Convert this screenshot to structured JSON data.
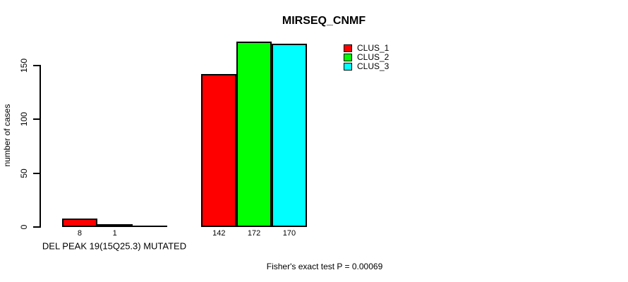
{
  "title": "MIRSEQ_CNMF",
  "y_axis": {
    "label": "number of cases",
    "tick_labels": [
      "0",
      "50",
      "100",
      "150"
    ]
  },
  "x_axis": {
    "label": "DEL PEAK 19(15Q25.3) MUTATED"
  },
  "footer": "Fisher's exact test P = 0.00069",
  "legend": {
    "position": "top-right",
    "items": [
      {
        "label": "CLUS_1",
        "color": "#FF0000"
      },
      {
        "label": "CLUS_2",
        "color": "#00FF00"
      },
      {
        "label": "CLUS_3",
        "color": "#00FFFF"
      }
    ]
  },
  "chart_data": {
    "type": "bar",
    "title": "MIRSEQ_CNMF",
    "ylabel": "number of cases",
    "xlabel": "DEL PEAK 19(15Q25.3) MUTATED",
    "categories": [
      "DEL PEAK 19(15Q25.3) MUTATED",
      ""
    ],
    "series": [
      {
        "name": "CLUS_1",
        "color": "#FF0000",
        "values": [
          8,
          142
        ]
      },
      {
        "name": "CLUS_2",
        "color": "#00FF00",
        "values": [
          1,
          172
        ]
      },
      {
        "name": "CLUS_3",
        "color": "#00FFFF",
        "values": [
          0,
          170
        ]
      }
    ],
    "bar_labels": [
      [
        "8",
        "1",
        ""
      ],
      [
        "142",
        "172",
        "170"
      ]
    ],
    "yticks": [
      0,
      50,
      100,
      150
    ],
    "ylim": [
      0,
      172
    ],
    "grid": false,
    "bar_border_color": "#000000",
    "legend_position": "top-right",
    "annotation": "Fisher's exact test P = 0.00069"
  }
}
